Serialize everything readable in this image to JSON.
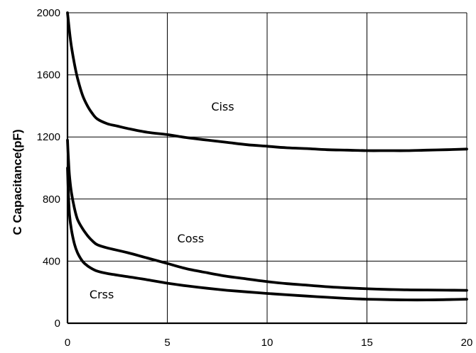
{
  "chart_data": {
    "type": "line",
    "title": "",
    "xlabel": "",
    "ylabel": "C Capacitance(pF)",
    "xlim": [
      0,
      20
    ],
    "ylim": [
      0,
      2000
    ],
    "xticks": [
      0,
      5,
      10,
      15,
      20
    ],
    "yticks": [
      0,
      400,
      800,
      1200,
      1600,
      2000
    ],
    "grid": true,
    "legend": "none",
    "series": [
      {
        "name": "Ciss",
        "x": [
          0,
          0.1,
          0.2,
          0.35,
          0.5,
          0.75,
          1,
          1.25,
          1.5,
          2,
          2.5,
          3,
          4,
          5,
          6,
          7,
          8,
          9,
          10,
          11,
          12,
          13,
          14,
          15,
          16,
          17,
          18,
          19,
          20
        ],
        "y": [
          2000,
          1880,
          1780,
          1670,
          1580,
          1470,
          1400,
          1350,
          1315,
          1285,
          1270,
          1255,
          1230,
          1215,
          1195,
          1180,
          1165,
          1150,
          1140,
          1130,
          1125,
          1118,
          1115,
          1112,
          1112,
          1112,
          1115,
          1118,
          1122
        ]
      },
      {
        "name": "Coss",
        "x": [
          0,
          0.05,
          0.1,
          0.2,
          0.35,
          0.5,
          0.75,
          1,
          1.25,
          1.5,
          2,
          3,
          4,
          5,
          6,
          7,
          8,
          9,
          10,
          11,
          12,
          13,
          14,
          15,
          16,
          17,
          18,
          19,
          20
        ],
        "y": [
          1180,
          1050,
          950,
          840,
          740,
          670,
          610,
          565,
          530,
          505,
          485,
          455,
          420,
          385,
          350,
          325,
          302,
          285,
          268,
          255,
          245,
          235,
          228,
          222,
          218,
          215,
          214,
          213,
          212
        ]
      },
      {
        "name": "Crss",
        "x": [
          0,
          0.05,
          0.1,
          0.2,
          0.35,
          0.5,
          0.75,
          1,
          1.25,
          1.5,
          2,
          3,
          4,
          5,
          6,
          7,
          8,
          9,
          10,
          11,
          12,
          13,
          14,
          15,
          16,
          17,
          18,
          19,
          20
        ],
        "y": [
          1000,
          820,
          700,
          600,
          510,
          455,
          400,
          370,
          350,
          335,
          320,
          300,
          280,
          258,
          240,
          225,
          212,
          202,
          192,
          183,
          175,
          167,
          160,
          155,
          152,
          150,
          150,
          152,
          155
        ]
      }
    ],
    "annotations": [
      {
        "text": "Ciss",
        "x": 7.2,
        "y": 1370
      },
      {
        "text": "Coss",
        "x": 5.5,
        "y": 520
      },
      {
        "text": "Crss",
        "x": 1.1,
        "y": 160
      }
    ]
  }
}
